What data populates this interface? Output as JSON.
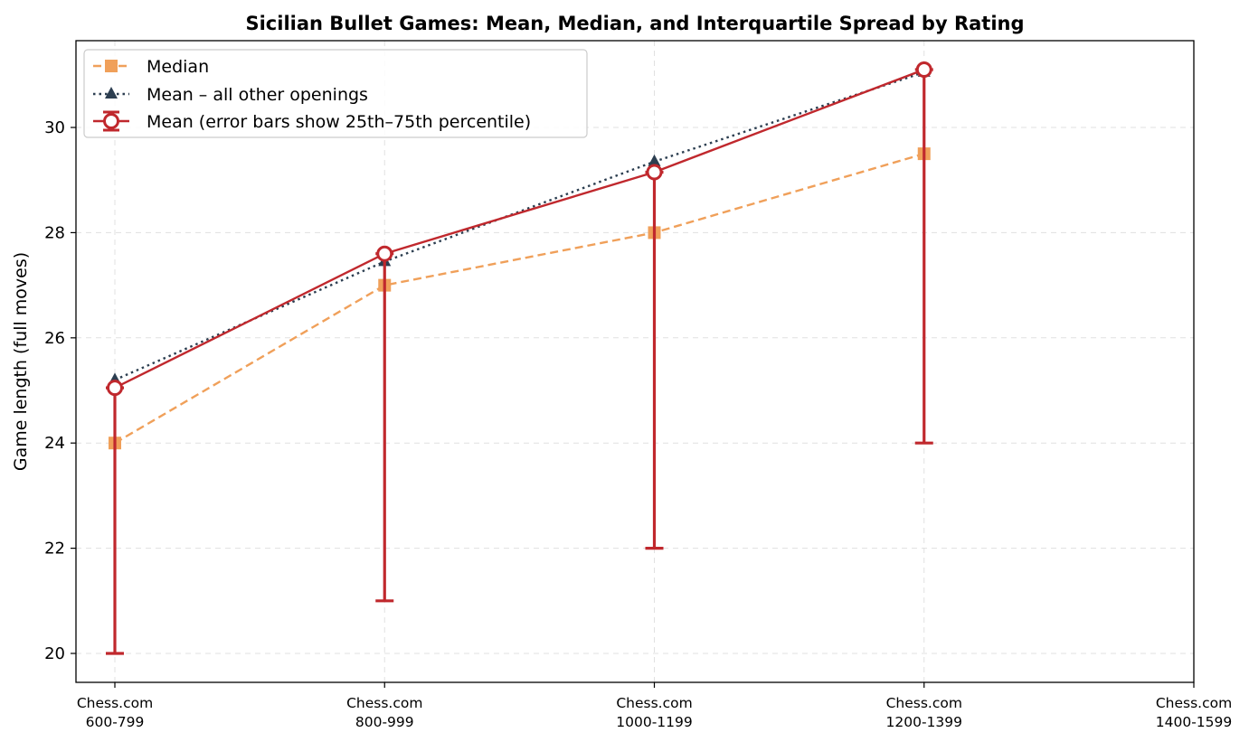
{
  "chart_data": {
    "type": "line",
    "title": "Sicilian Bullet Games: Mean, Median, and Interquartile Spread by Rating",
    "xlabel": "",
    "ylabel": "Game length (full moves)",
    "categories": [
      [
        "Chess.com",
        "600-799"
      ],
      [
        "Chess.com",
        "800-999"
      ],
      [
        "Chess.com",
        "1000-1199"
      ],
      [
        "Chess.com",
        "1200-1399"
      ],
      [
        "Chess.com",
        "1400-1599"
      ]
    ],
    "ylim": [
      19.45,
      31.65
    ],
    "yticks": [
      "20",
      "22",
      "24",
      "26",
      "28",
      "30"
    ],
    "grid": true,
    "legend_position": "top-left",
    "series": [
      {
        "name": "Median",
        "style": "dashed",
        "marker": "square",
        "color": "#f0a05a",
        "values": [
          24.0,
          27.0,
          28.0,
          29.5,
          null
        ]
      },
      {
        "name": "Mean – all other openings",
        "style": "dotted",
        "marker": "triangle",
        "color": "#2c3e50",
        "values": [
          25.2,
          27.45,
          29.35,
          31.05,
          null
        ]
      },
      {
        "name": "Mean (error bars show 25th–75th percentile)",
        "style": "solid",
        "marker": "open-circle",
        "color": "#c0282d",
        "values": [
          25.05,
          27.6,
          29.15,
          31.1,
          null
        ],
        "p25": [
          20.0,
          21.0,
          22.0,
          24.0,
          null
        ],
        "p75": [
          25.05,
          27.6,
          29.15,
          31.1,
          null
        ]
      }
    ]
  }
}
